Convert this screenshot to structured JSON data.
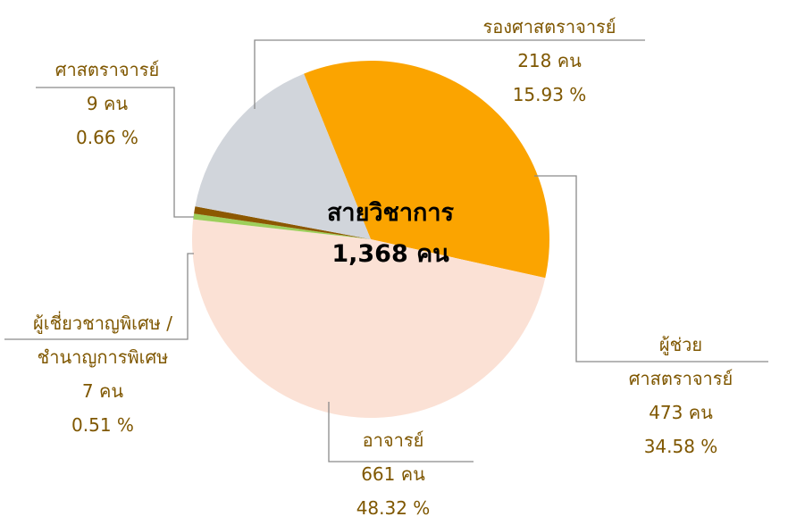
{
  "chart_data": {
    "type": "pie",
    "center_title": "สายวิชาการ",
    "center_label": "1,368 คน",
    "categories": [
      "ผู้ช่วยศาสตราจารย์",
      "อาจารย์",
      "ผู้เชี่ยวชาญพิเศษ /\nชำนาญการพิเศษ",
      "ศาสตราจารย์",
      "รองศาสตราจารย์"
    ],
    "values": [
      473,
      661,
      7,
      9,
      218
    ],
    "value_labels": [
      "473 คน",
      "661 คน",
      "7 คน",
      "9 คน",
      "218 คน"
    ],
    "percentages": [
      34.58,
      48.32,
      0.51,
      0.66,
      15.93
    ],
    "percentage_labels": [
      "34.58 %",
      "48.32 %",
      "0.51 %",
      "0.66 %",
      "15.93 %"
    ],
    "colors": [
      "#fba400",
      "#fbe1d5",
      "#9dcf5b",
      "#8c5800",
      "#d1d5db"
    ]
  }
}
